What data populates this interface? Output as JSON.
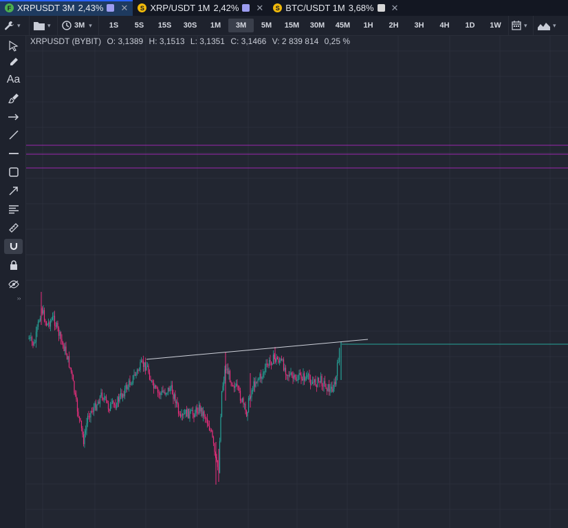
{
  "tabs": [
    {
      "badge": "F",
      "badge_color": "#4caf50",
      "label": "XRPUSDT 3M",
      "pct": "2,43%",
      "color": "#9c9cf0",
      "close": "✕",
      "active": true
    },
    {
      "badge": "S",
      "badge_color": "#f0b90b",
      "label": "XRP/USDT 1M",
      "pct": "2,42%",
      "color": "#9c9cf0",
      "close": "✕",
      "active": false
    },
    {
      "badge": "S",
      "badge_color": "#f0b90b",
      "label": "BTC/USDT 1M",
      "pct": "3,68%",
      "color": "#d6d6d6",
      "close": "✕",
      "active": false
    }
  ],
  "toolbar": {
    "interval_label": "3M",
    "timeframes": [
      "1S",
      "5S",
      "15S",
      "30S",
      "1M",
      "3M",
      "5M",
      "15M",
      "30M",
      "45M",
      "1H",
      "2H",
      "3H",
      "4H",
      "1D",
      "1W"
    ],
    "selected_timeframe": "3M"
  },
  "sidebar_tools": [
    "cursor-icon",
    "pencil-icon",
    "text-icon",
    "brush-icon",
    "arrow-right-icon",
    "trendline-icon",
    "horizontal-line-icon",
    "rectangle-icon",
    "arrow-icon",
    "text-align-icon",
    "ruler-icon",
    "magnet-icon",
    "lock-icon",
    "eye-icon"
  ],
  "legend": {
    "symbol": "XRPUSDT (BYBIT)",
    "open": "O: 3,1389",
    "high": "H: 3,1513",
    "low": "L: 3,1351",
    "close": "C: 3,1466",
    "volume": "V: 2 839 814",
    "change": "0,25 %"
  },
  "chart_data": {
    "type": "candlestick",
    "up_color": "#26a69a",
    "down_color": "#ef2f7f",
    "levels_color": "#9c27b0",
    "trendline_color": "#d0d3dc",
    "last_price_line_color": "#26a69a"
  }
}
